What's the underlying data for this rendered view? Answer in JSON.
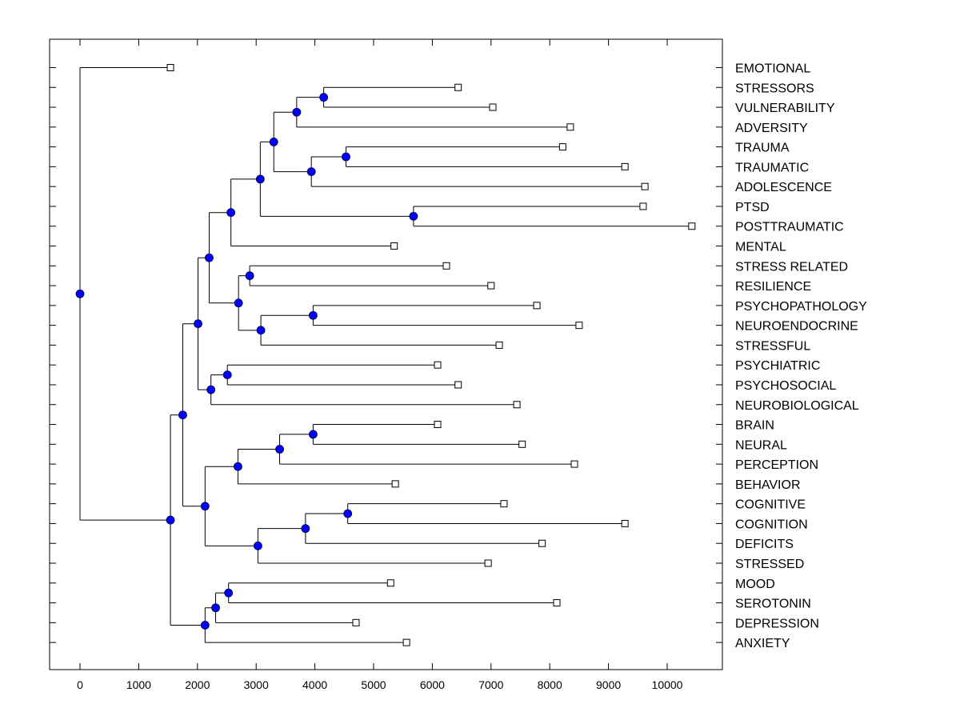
{
  "chart_data": {
    "type": "dendrogram",
    "title": "",
    "xlabel": "",
    "ylabel": "",
    "xlim": [
      -500,
      10950
    ],
    "xticks": [
      0,
      1000,
      2000,
      3000,
      4000,
      5000,
      6000,
      7000,
      8000,
      9000,
      10000
    ],
    "grid": false,
    "leaf_marker_color": "#ffffff",
    "node_marker_color": "#0000ff",
    "leaves": [
      {
        "label": "EMOTIONAL",
        "value": 1540
      },
      {
        "label": "STRESSORS",
        "value": 6440
      },
      {
        "label": "VULNERABILITY",
        "value": 7030
      },
      {
        "label": "ADVERSITY",
        "value": 8350
      },
      {
        "label": "TRAUMA",
        "value": 8220
      },
      {
        "label": "TRAUMATIC",
        "value": 9280
      },
      {
        "label": "ADOLESCENCE",
        "value": 9620
      },
      {
        "label": "PTSD",
        "value": 9590
      },
      {
        "label": "POSTTRAUMATIC",
        "value": 10420
      },
      {
        "label": "MENTAL",
        "value": 5350
      },
      {
        "label": "STRESS RELATED",
        "value": 6240
      },
      {
        "label": "RESILIENCE",
        "value": 7000
      },
      {
        "label": "PSYCHOPATHOLOGY",
        "value": 7780
      },
      {
        "label": "NEUROENDOCRINE",
        "value": 8500
      },
      {
        "label": "STRESSFUL",
        "value": 7140
      },
      {
        "label": "PSYCHIATRIC",
        "value": 6090
      },
      {
        "label": "PSYCHOSOCIAL",
        "value": 6440
      },
      {
        "label": "NEUROBIOLOGICAL",
        "value": 7440
      },
      {
        "label": "BRAIN",
        "value": 6090
      },
      {
        "label": "NEURAL",
        "value": 7530
      },
      {
        "label": "PERCEPTION",
        "value": 8420
      },
      {
        "label": "BEHAVIOR",
        "value": 5370
      },
      {
        "label": "COGNITIVE",
        "value": 7220
      },
      {
        "label": "COGNITION",
        "value": 9280
      },
      {
        "label": "DEFICITS",
        "value": 7870
      },
      {
        "label": "STRESSED",
        "value": 6950
      },
      {
        "label": "MOOD",
        "value": 5290
      },
      {
        "label": "SEROTONIN",
        "value": 8120
      },
      {
        "label": "DEPRESSION",
        "value": 4700
      },
      {
        "label": "ANXIETY",
        "value": 5560
      }
    ],
    "merges": [
      {
        "id": "m1",
        "children": [
          "STRESSORS",
          "VULNERABILITY"
        ],
        "value": 4150
      },
      {
        "id": "m2",
        "children": [
          "m1",
          "ADVERSITY"
        ],
        "value": 3690
      },
      {
        "id": "m3",
        "children": [
          "TRAUMA",
          "TRAUMATIC"
        ],
        "value": 4530
      },
      {
        "id": "m4",
        "children": [
          "m3",
          "ADOLESCENCE"
        ],
        "value": 3940
      },
      {
        "id": "m5",
        "children": [
          "m2",
          "m4"
        ],
        "value": 3300
      },
      {
        "id": "m6",
        "children": [
          "PTSD",
          "POSTTRAUMATIC"
        ],
        "value": 5680
      },
      {
        "id": "m7",
        "children": [
          "m5",
          "m6"
        ],
        "value": 3070
      },
      {
        "id": "m8",
        "children": [
          "m7",
          "MENTAL"
        ],
        "value": 2570
      },
      {
        "id": "m9",
        "children": [
          "STRESS RELATED",
          "RESILIENCE"
        ],
        "value": 2890
      },
      {
        "id": "m10",
        "children": [
          "PSYCHOPATHOLOGY",
          "NEUROENDOCRINE"
        ],
        "value": 3970
      },
      {
        "id": "m11",
        "children": [
          "m10",
          "STRESSFUL"
        ],
        "value": 3080
      },
      {
        "id": "m12",
        "children": [
          "m9",
          "m11"
        ],
        "value": 2700
      },
      {
        "id": "m13",
        "children": [
          "m8",
          "m12"
        ],
        "value": 2200
      },
      {
        "id": "m14",
        "children": [
          "PSYCHIATRIC",
          "PSYCHOSOCIAL"
        ],
        "value": 2510
      },
      {
        "id": "m15",
        "children": [
          "m14",
          "NEUROBIOLOGICAL"
        ],
        "value": 2230
      },
      {
        "id": "m16",
        "children": [
          "m13",
          "m15"
        ],
        "value": 2010
      },
      {
        "id": "m17",
        "children": [
          "BRAIN",
          "NEURAL"
        ],
        "value": 3970
      },
      {
        "id": "m18",
        "children": [
          "m17",
          "PERCEPTION"
        ],
        "value": 3400
      },
      {
        "id": "m19",
        "children": [
          "m18",
          "BEHAVIOR"
        ],
        "value": 2690
      },
      {
        "id": "m20",
        "children": [
          "COGNITIVE",
          "COGNITION"
        ],
        "value": 4560
      },
      {
        "id": "m21",
        "children": [
          "m20",
          "DEFICITS"
        ],
        "value": 3840
      },
      {
        "id": "m22",
        "children": [
          "m21",
          "STRESSED"
        ],
        "value": 3030
      },
      {
        "id": "m23",
        "children": [
          "m19",
          "m22"
        ],
        "value": 2130
      },
      {
        "id": "m24",
        "children": [
          "m16",
          "m23"
        ],
        "value": 1750
      },
      {
        "id": "m25",
        "children": [
          "MOOD",
          "SEROTONIN"
        ],
        "value": 2530
      },
      {
        "id": "m26",
        "children": [
          "m25",
          "DEPRESSION"
        ],
        "value": 2310
      },
      {
        "id": "m27",
        "children": [
          "m26",
          "ANXIETY"
        ],
        "value": 2130
      },
      {
        "id": "m28",
        "children": [
          "m24",
          "m27"
        ],
        "value": 1540
      },
      {
        "id": "root",
        "children": [
          "EMOTIONAL",
          "m28"
        ],
        "value": 0
      }
    ]
  }
}
